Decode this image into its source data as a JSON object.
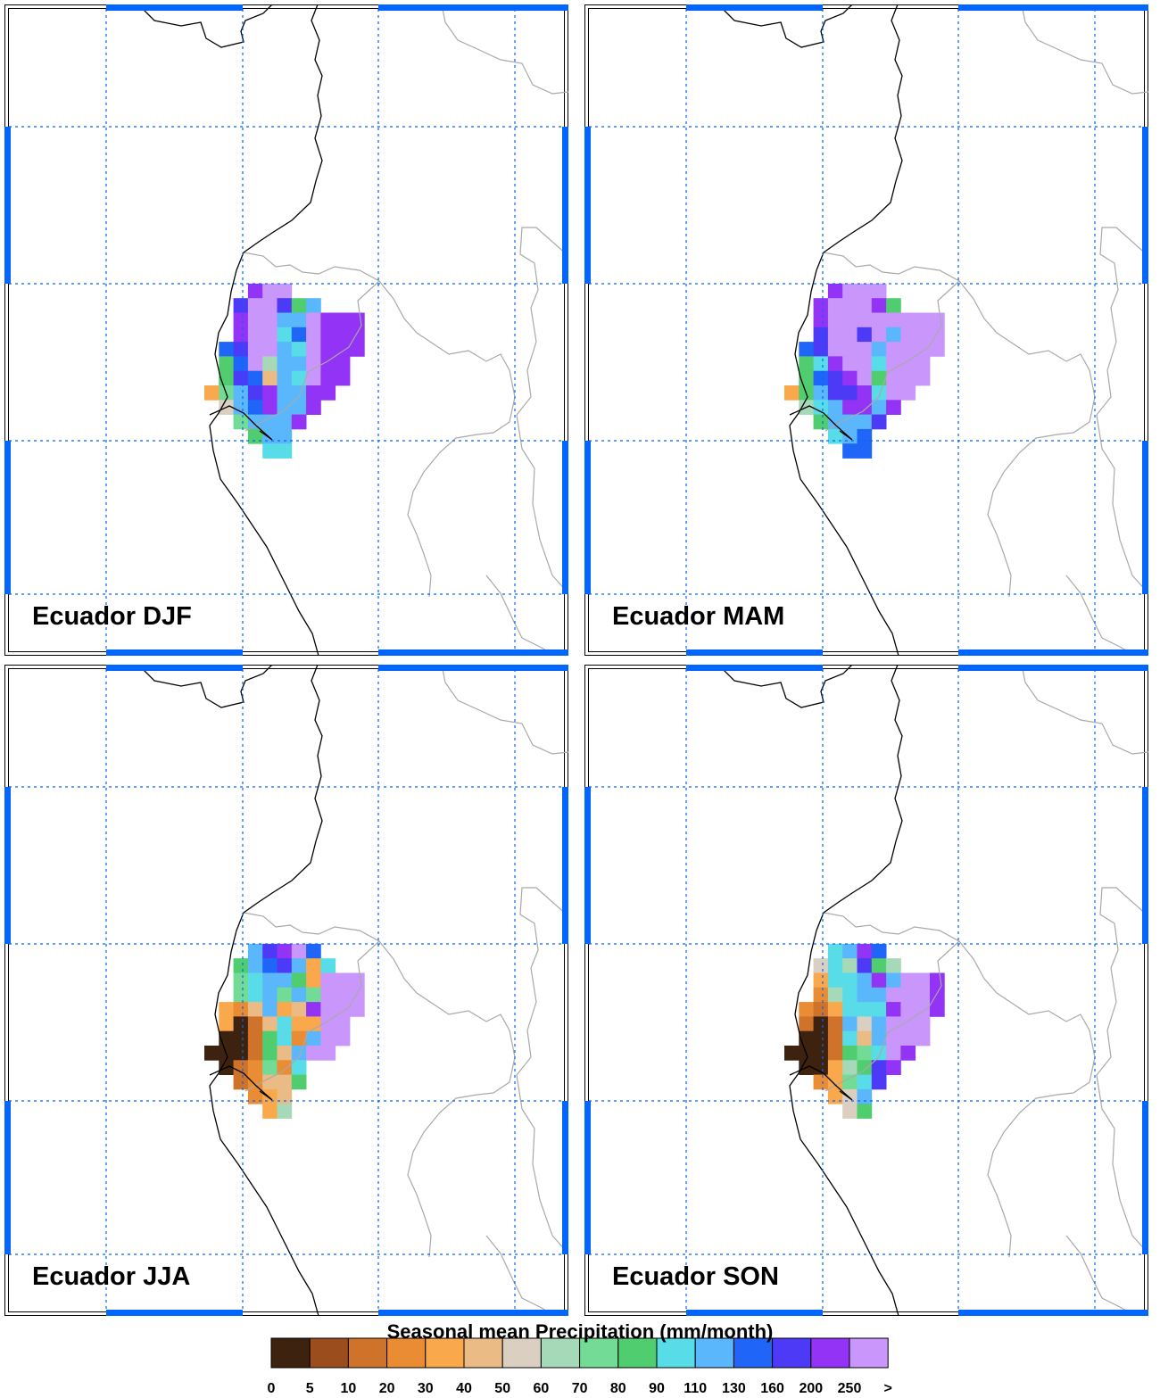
{
  "panels": [
    {
      "title": "Ecuador DJF",
      "season": "DJF",
      "cells": [
        [
          "",
          "",
          "",
          "",
          "",
          "",
          "",
          "",
          "",
          "",
          ""
        ],
        [
          "",
          "",
          "",
          "",
          "",
          "",
          "",
          "",
          "",
          "",
          ""
        ],
        [
          "",
          "",
          "",
          "",
          "",
          "",
          "",
          "",
          "",
          "",
          ""
        ],
        [
          "",
          "",
          "250",
          "200",
          ">",
          ">",
          "",
          "",
          "",
          "",
          ""
        ],
        [
          "",
          "",
          "160",
          ">",
          ">",
          "160",
          "80",
          "110",
          "",
          "",
          ""
        ],
        [
          "",
          "",
          "200",
          ">",
          ">",
          "110",
          "110",
          ">",
          "200",
          "200",
          "200"
        ],
        [
          "",
          "",
          "200",
          ">",
          ">",
          "90",
          "130",
          ">",
          "200",
          "200",
          "200"
        ],
        [
          "",
          "130",
          "160",
          ">",
          ">",
          "110",
          "90",
          ">",
          "200",
          "200",
          "200"
        ],
        [
          "",
          "80",
          "130",
          ">",
          "60",
          "110",
          "110",
          ">",
          "200",
          "200",
          ""
        ],
        [
          "",
          "80",
          "160",
          "130",
          "40",
          "110",
          "90",
          ">",
          "200",
          "200",
          ""
        ],
        [
          "30",
          "70",
          "110",
          "160",
          "200",
          "110",
          "110",
          "200",
          "200",
          "",
          ""
        ],
        [
          "",
          "50",
          "110",
          "130",
          "200",
          "110",
          "110",
          "200",
          "",
          "",
          ""
        ],
        [
          "",
          "",
          "70",
          "110",
          "110",
          "110",
          "200",
          "",
          "",
          "",
          ""
        ],
        [
          "",
          "",
          "",
          "80",
          "110",
          "110",
          "",
          "",
          "",
          "",
          ""
        ],
        [
          "",
          "",
          "",
          "",
          "90",
          "90",
          "",
          "",
          "",
          "",
          ""
        ]
      ]
    },
    {
      "title": "Ecuador MAM",
      "season": "MAM",
      "cells": [
        [
          "",
          "",
          "",
          "",
          "",
          "",
          "",
          "",
          "",
          "",
          ""
        ],
        [
          "",
          "",
          "",
          "",
          "",
          "",
          "",
          "",
          "",
          "",
          ""
        ],
        [
          "",
          "",
          "",
          "",
          "",
          "",
          "",
          "",
          "",
          "",
          ""
        ],
        [
          "",
          "",
          "",
          "200",
          ">",
          ">",
          ">",
          "",
          "",
          "",
          ""
        ],
        [
          "",
          "",
          "200",
          ">",
          ">",
          ">",
          "200",
          "80",
          "",
          "",
          ""
        ],
        [
          "",
          "",
          "200",
          ">",
          ">",
          ">",
          ">",
          ">",
          ">",
          ">",
          ">"
        ],
        [
          "",
          "",
          "160",
          ">",
          ">",
          "160",
          ">",
          "110",
          ">",
          ">",
          ">"
        ],
        [
          "",
          "130",
          "160",
          ">",
          ">",
          ">",
          "110",
          ">",
          ">",
          ">",
          ">"
        ],
        [
          "",
          "80",
          "90",
          "200",
          ">",
          ">",
          "90",
          ">",
          ">",
          ">",
          ""
        ],
        [
          "",
          "80",
          "130",
          "160",
          "200",
          ">",
          "80",
          ">",
          ">",
          ">",
          ""
        ],
        [
          "30",
          "80",
          "110",
          "160",
          "160",
          "200",
          "90",
          ">",
          ">",
          "",
          ""
        ],
        [
          "",
          "60",
          "90",
          "110",
          "200",
          "200",
          "110",
          "200",
          "",
          "",
          ""
        ],
        [
          "",
          "",
          "80",
          "110",
          "110",
          "110",
          "160",
          "",
          "",
          "",
          ""
        ],
        [
          "",
          "",
          "",
          "90",
          "110",
          "130",
          "",
          "",
          "",
          "",
          ""
        ],
        [
          "",
          "",
          "",
          "",
          "130",
          "130",
          "",
          "",
          "",
          "",
          ""
        ]
      ]
    },
    {
      "title": "Ecuador JJA",
      "season": "JJA",
      "cells": [
        [
          "",
          "",
          "",
          "",
          "",
          "",
          "",
          "",
          "",
          "",
          ""
        ],
        [
          "",
          "",
          "",
          "",
          "",
          "",
          "",
          "",
          "",
          "",
          ""
        ],
        [
          "",
          "",
          "",
          "",
          "",
          "",
          "",
          "",
          "",
          "",
          ""
        ],
        [
          "",
          "",
          "",
          "110",
          "160",
          "200",
          ">",
          "130",
          "",
          "",
          ""
        ],
        [
          "",
          "",
          "80",
          "110",
          "130",
          "160",
          "110",
          "30",
          "90",
          "",
          ""
        ],
        [
          "",
          "",
          "70",
          "90",
          "110",
          "110",
          "80",
          "30",
          ">",
          ">",
          ">"
        ],
        [
          "",
          "",
          "70",
          "90",
          "110",
          "70",
          "110",
          "70",
          ">",
          ">",
          ">"
        ],
        [
          "",
          "30",
          "20",
          "40",
          "110",
          "30",
          "40",
          "200",
          ">",
          ">",
          ">"
        ],
        [
          "",
          "30",
          "0",
          "10",
          "40",
          "90",
          "30",
          "30",
          ">",
          ">",
          ""
        ],
        [
          "",
          "0",
          "0",
          "10",
          "80",
          "90",
          "20",
          "110",
          ">",
          ">",
          ""
        ],
        [
          "0",
          "0",
          "0",
          "10",
          "80",
          "40",
          "110",
          ">",
          ">",
          "",
          ""
        ],
        [
          "",
          "0",
          "10",
          "20",
          "70",
          "20",
          "90",
          "",
          "",
          "",
          ""
        ],
        [
          "",
          "",
          "10",
          "20",
          "40",
          "40",
          "80",
          "",
          "",
          "",
          ""
        ],
        [
          "",
          "",
          "",
          "20",
          "30",
          "40",
          "",
          "",
          "",
          "",
          ""
        ],
        [
          "",
          "",
          "",
          "",
          "30",
          "60",
          "",
          "",
          "",
          "",
          ""
        ]
      ]
    },
    {
      "title": "Ecuador SON",
      "season": "SON",
      "cells": [
        [
          "",
          "",
          "",
          "",
          "",
          "",
          "",
          "",
          "",
          "",
          ""
        ],
        [
          "",
          "",
          "",
          "",
          "",
          "",
          "",
          "",
          "",
          "",
          ""
        ],
        [
          "",
          "",
          "",
          "",
          "",
          "",
          "",
          "",
          "",
          "",
          ""
        ],
        [
          "",
          "",
          "",
          "90",
          "110",
          "200",
          "130",
          "",
          "",
          "",
          ""
        ],
        [
          "",
          "",
          "50",
          "90",
          "60",
          "160",
          "80",
          "60",
          "",
          "",
          ""
        ],
        [
          "",
          "",
          "30",
          "90",
          "90",
          "110",
          "200",
          "110",
          ">",
          ">",
          "200"
        ],
        [
          "",
          "",
          "20",
          "60",
          "90",
          "110",
          "110",
          ">",
          ">",
          ">",
          "200"
        ],
        [
          "",
          "20",
          "10",
          "30",
          "90",
          "90",
          "90",
          "200",
          ">",
          ">",
          "200"
        ],
        [
          "",
          "10",
          "0",
          "10",
          "110",
          "50",
          "110",
          ">",
          ">",
          ">",
          ""
        ],
        [
          "",
          "0",
          "0",
          "10",
          "90",
          "40",
          "110",
          ">",
          ">",
          ">",
          ""
        ],
        [
          "0",
          "0",
          "0",
          "10",
          "80",
          "70",
          "90",
          ">",
          "200",
          "",
          ""
        ],
        [
          "",
          "0",
          "0",
          "30",
          "60",
          "80",
          "160",
          "200",
          "",
          "",
          ""
        ],
        [
          "",
          "",
          "20",
          "30",
          "70",
          "90",
          "160",
          "",
          "",
          "",
          ""
        ],
        [
          "",
          "",
          "",
          "30",
          "50",
          "110",
          "",
          "",
          "",
          "",
          ""
        ],
        [
          "",
          "",
          "",
          "",
          "50",
          "80",
          "",
          "",
          "",
          "",
          ""
        ]
      ]
    }
  ],
  "colorbar": {
    "title": "Seasonal mean Precipitation (mm/month)",
    "levels": [
      "0",
      "5",
      "10",
      "20",
      "30",
      "40",
      "50",
      "60",
      "70",
      "80",
      "90",
      "110",
      "130",
      "160",
      "200",
      "250",
      ">"
    ],
    "bins": [
      {
        "key": "0",
        "color": "#3e2210"
      },
      {
        "key": "5",
        "color": "#9c4d1e"
      },
      {
        "key": "10",
        "color": "#d0732a"
      },
      {
        "key": "20",
        "color": "#e98c34"
      },
      {
        "key": "30",
        "color": "#f9a84c"
      },
      {
        "key": "40",
        "color": "#ebbb86"
      },
      {
        "key": "50",
        "color": "#dacfc1"
      },
      {
        "key": "60",
        "color": "#a6d9b8"
      },
      {
        "key": "70",
        "color": "#72dc96"
      },
      {
        "key": "80",
        "color": "#4fcd6f"
      },
      {
        "key": "90",
        "color": "#58dde8"
      },
      {
        "key": "110",
        "color": "#5ab7fb"
      },
      {
        "key": "130",
        "color": "#1f66f8"
      },
      {
        "key": "160",
        "color": "#4d3af7"
      },
      {
        "key": "200",
        "color": "#9233f5"
      },
      {
        "key": ">",
        "color": "#c996fb"
      }
    ]
  },
  "colors": {
    "frame_accent": "#0066ff",
    "grid": "#0066ff",
    "coast": "#000000",
    "borders": "#a9a9a9"
  }
}
